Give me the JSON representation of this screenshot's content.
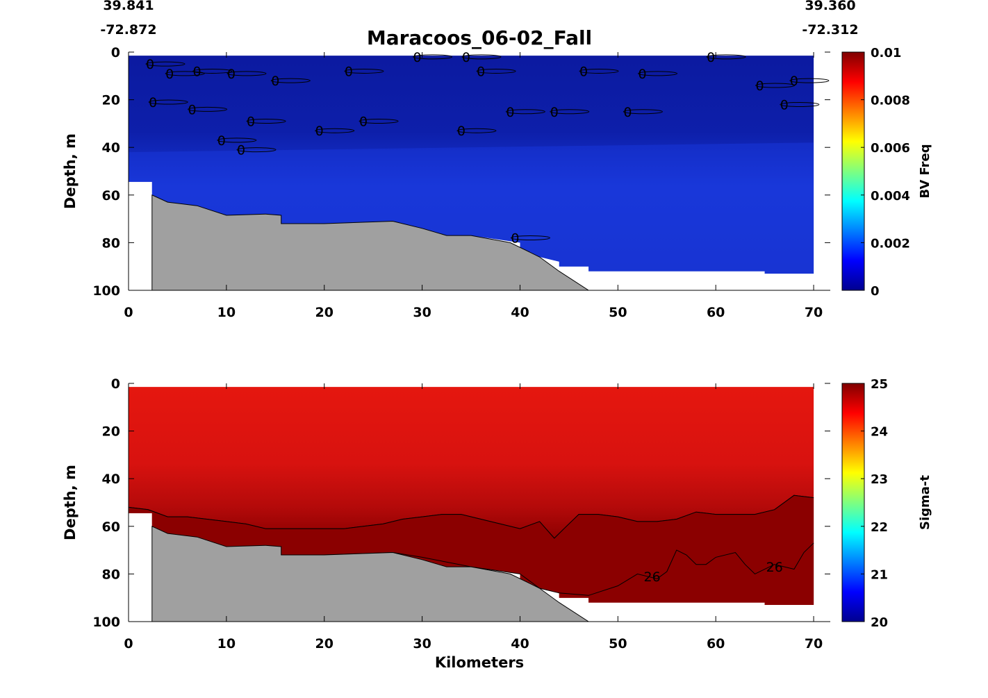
{
  "title": "Maracoos_06-02_Fall",
  "coords": {
    "start_lat": "39.841",
    "start_lon": "-72.872",
    "end_lat": "39.360",
    "end_lon": "-72.312"
  },
  "chart_data": [
    {
      "type": "heatmap",
      "name": "bv-freq-section",
      "xlabel": "",
      "ylabel": "Depth, m",
      "xlim": [
        0,
        70
      ],
      "ylim": [
        0,
        100
      ],
      "y_reversed": true,
      "x_ticks": [
        "0",
        "10",
        "20",
        "30",
        "40",
        "50",
        "60",
        "70"
      ],
      "y_ticks": [
        "0",
        "20",
        "40",
        "60",
        "80",
        "100"
      ],
      "colorbar": {
        "label": "BV Freq",
        "range": [
          0,
          0.01
        ],
        "ticks": [
          "0",
          "0.002",
          "0.004",
          "0.006",
          "0.008",
          "0.01"
        ]
      },
      "fill_color_top": "#0d1ea8",
      "fill_color_deep": "#1a33d6",
      "contour_levels": [
        "0"
      ],
      "contour_labels": [
        {
          "x": 2.2,
          "y": 5,
          "text": "0"
        },
        {
          "x": 4.2,
          "y": 9,
          "text": "0"
        },
        {
          "x": 7,
          "y": 8,
          "text": "0"
        },
        {
          "x": 10.5,
          "y": 9,
          "text": "0"
        },
        {
          "x": 15,
          "y": 12,
          "text": "0"
        },
        {
          "x": 22.5,
          "y": 8,
          "text": "0"
        },
        {
          "x": 29.5,
          "y": 2,
          "text": "0"
        },
        {
          "x": 34.5,
          "y": 2,
          "text": "0"
        },
        {
          "x": 36,
          "y": 8,
          "text": "0"
        },
        {
          "x": 46.5,
          "y": 8,
          "text": "0"
        },
        {
          "x": 52.5,
          "y": 9,
          "text": "0"
        },
        {
          "x": 59.5,
          "y": 2,
          "text": "0"
        },
        {
          "x": 64.5,
          "y": 14,
          "text": "0"
        },
        {
          "x": 68,
          "y": 12,
          "text": "0"
        },
        {
          "x": 2.5,
          "y": 21,
          "text": "0"
        },
        {
          "x": 6.5,
          "y": 24,
          "text": "0"
        },
        {
          "x": 12.5,
          "y": 29,
          "text": "0"
        },
        {
          "x": 19.5,
          "y": 33,
          "text": "0"
        },
        {
          "x": 24,
          "y": 29,
          "text": "0"
        },
        {
          "x": 34,
          "y": 33,
          "text": "0"
        },
        {
          "x": 39,
          "y": 25,
          "text": "0"
        },
        {
          "x": 43.5,
          "y": 25,
          "text": "0"
        },
        {
          "x": 51,
          "y": 25,
          "text": "0"
        },
        {
          "x": 67,
          "y": 22,
          "text": "0"
        },
        {
          "x": 9.5,
          "y": 37,
          "text": "0"
        },
        {
          "x": 11.5,
          "y": 41,
          "text": "0"
        },
        {
          "x": 39.5,
          "y": 78,
          "text": "0"
        }
      ],
      "bathymetry": {
        "color": "#a0a0a0",
        "points": [
          [
            2.4,
            100
          ],
          [
            2.4,
            60
          ],
          [
            4,
            63
          ],
          [
            7,
            64.5
          ],
          [
            10,
            68.5
          ],
          [
            14,
            68
          ],
          [
            15.6,
            68.5
          ],
          [
            15.6,
            72
          ],
          [
            20,
            72
          ],
          [
            27,
            71
          ],
          [
            30,
            74
          ],
          [
            32.5,
            77
          ],
          [
            35,
            77
          ],
          [
            39,
            80
          ],
          [
            42,
            86
          ],
          [
            44,
            92
          ],
          [
            47,
            100
          ]
        ]
      },
      "data_extent": [
        [
          0,
          1.5
        ],
        [
          70,
          1.5
        ],
        [
          70,
          93
        ],
        [
          65,
          93
        ],
        [
          65,
          92
        ],
        [
          47,
          92
        ],
        [
          47,
          90
        ],
        [
          44,
          90
        ],
        [
          44,
          88
        ],
        [
          40,
          84
        ],
        [
          40,
          80
        ],
        [
          35,
          77
        ],
        [
          32.5,
          77
        ],
        [
          30,
          74
        ],
        [
          27,
          71
        ],
        [
          20,
          72
        ],
        [
          15.6,
          72
        ],
        [
          15.6,
          68.5
        ],
        [
          10,
          68.5
        ],
        [
          7,
          66
        ],
        [
          4,
          63
        ],
        [
          2.4,
          60
        ],
        [
          2.4,
          54.5
        ],
        [
          0,
          54.5
        ]
      ]
    },
    {
      "type": "heatmap",
      "name": "sigma-t-section",
      "xlabel": "Kilometers",
      "ylabel": "Depth, m",
      "xlim": [
        0,
        70
      ],
      "ylim": [
        0,
        100
      ],
      "y_reversed": true,
      "x_ticks": [
        "0",
        "10",
        "20",
        "30",
        "40",
        "50",
        "60",
        "70"
      ],
      "y_ticks": [
        "0",
        "20",
        "40",
        "60",
        "80",
        "100"
      ],
      "colorbar": {
        "label": "Sigma-t",
        "range": [
          20,
          25
        ],
        "ticks": [
          "20",
          "21",
          "22",
          "23",
          "24",
          "25"
        ]
      },
      "fill_color_top": "#e8180f",
      "fill_color_mid": "#c50d0d",
      "fill_color_deep": "#8b0000",
      "contour_levels": [
        "26"
      ],
      "contour_labels": [
        {
          "x": 53.5,
          "y": 81,
          "text": "26"
        },
        {
          "x": 66,
          "y": 77,
          "text": "26"
        }
      ],
      "upper_contour": [
        [
          0,
          52
        ],
        [
          2,
          53
        ],
        [
          4,
          56
        ],
        [
          6,
          56
        ],
        [
          8,
          57
        ],
        [
          10,
          58
        ],
        [
          12,
          59
        ],
        [
          14,
          61
        ],
        [
          16,
          61
        ],
        [
          18,
          61
        ],
        [
          20,
          61
        ],
        [
          22,
          61
        ],
        [
          24,
          60
        ],
        [
          26,
          59
        ],
        [
          28,
          57
        ],
        [
          30,
          56
        ],
        [
          32,
          55
        ],
        [
          34,
          55
        ],
        [
          36,
          57
        ],
        [
          38,
          59
        ],
        [
          40,
          61
        ],
        [
          42,
          58
        ],
        [
          43.5,
          65
        ],
        [
          44.5,
          61
        ],
        [
          46,
          55
        ],
        [
          48,
          55
        ],
        [
          50,
          56
        ],
        [
          52,
          58
        ],
        [
          54,
          58
        ],
        [
          56,
          57
        ],
        [
          58,
          54
        ],
        [
          60,
          55
        ],
        [
          62,
          55
        ],
        [
          64,
          55
        ],
        [
          66,
          53
        ],
        [
          68,
          47
        ],
        [
          70,
          48
        ]
      ],
      "lower_contour": [
        [
          15.6,
          72.5
        ],
        [
          20,
          72
        ],
        [
          27,
          71
        ],
        [
          30,
          73
        ],
        [
          35,
          77
        ],
        [
          40,
          80
        ],
        [
          42,
          86
        ],
        [
          44,
          88
        ],
        [
          47,
          89
        ],
        [
          50,
          85
        ],
        [
          52,
          80
        ],
        [
          54,
          82
        ],
        [
          55,
          79
        ],
        [
          56,
          70
        ],
        [
          57,
          72
        ],
        [
          58,
          76
        ],
        [
          59,
          76
        ],
        [
          60,
          73
        ],
        [
          62,
          71
        ],
        [
          63,
          76
        ],
        [
          64,
          80
        ],
        [
          66,
          76
        ],
        [
          68,
          78
        ],
        [
          69,
          71
        ],
        [
          70,
          67
        ]
      ],
      "bathymetry": {
        "color": "#a0a0a0",
        "points": [
          [
            2.4,
            100
          ],
          [
            2.4,
            60
          ],
          [
            4,
            63
          ],
          [
            7,
            64.5
          ],
          [
            10,
            68.5
          ],
          [
            14,
            68
          ],
          [
            15.6,
            68.5
          ],
          [
            15.6,
            72
          ],
          [
            20,
            72
          ],
          [
            27,
            71
          ],
          [
            30,
            74
          ],
          [
            32.5,
            77
          ],
          [
            35,
            77
          ],
          [
            39,
            80
          ],
          [
            42,
            86
          ],
          [
            44,
            92
          ],
          [
            47,
            100
          ]
        ]
      },
      "data_extent": [
        [
          0,
          1.5
        ],
        [
          70,
          1.5
        ],
        [
          70,
          93
        ],
        [
          65,
          93
        ],
        [
          65,
          92
        ],
        [
          47,
          92
        ],
        [
          47,
          90
        ],
        [
          44,
          90
        ],
        [
          44,
          88
        ],
        [
          40,
          84
        ],
        [
          40,
          80
        ],
        [
          35,
          77
        ],
        [
          32.5,
          77
        ],
        [
          30,
          74
        ],
        [
          27,
          71
        ],
        [
          20,
          72
        ],
        [
          15.6,
          72
        ],
        [
          15.6,
          68.5
        ],
        [
          10,
          68.5
        ],
        [
          7,
          66
        ],
        [
          4,
          63
        ],
        [
          2.4,
          60
        ],
        [
          2.4,
          54.5
        ],
        [
          0,
          54.5
        ]
      ]
    }
  ],
  "colors": {
    "text": "#000000",
    "bathymetry": "#a0a0a0"
  }
}
